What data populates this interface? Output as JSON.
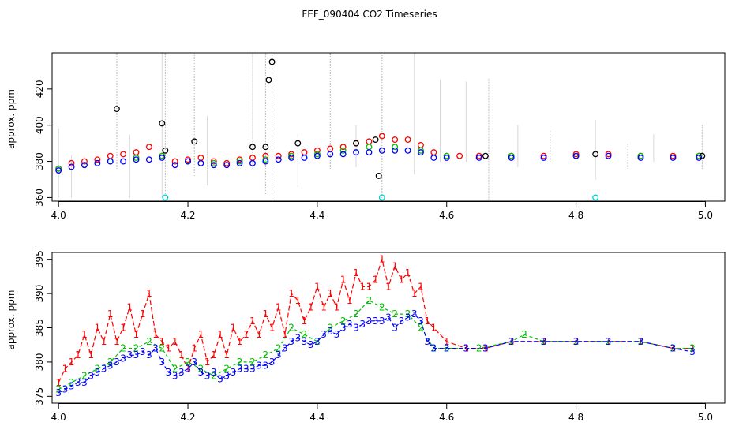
{
  "figure": {
    "title": "FEF_090404  CO2 Timeseries"
  },
  "colors": {
    "red": "#ff0000",
    "green": "#00c000",
    "blue": "#0000ff",
    "black": "#000000",
    "cyan": "#00d0d0",
    "gray": "#b0b0b0"
  },
  "chart_data": [
    {
      "type": "scatter",
      "ylabel": "approx. ppm",
      "xlim": [
        3.99,
        5.03
      ],
      "ylim": [
        358,
        440
      ],
      "xticks": [
        "4.0",
        "4.2",
        "4.4",
        "4.6",
        "4.8",
        "5.0"
      ],
      "yticks": [
        "360",
        "380",
        "400",
        "420"
      ],
      "xtick_values": [
        4.0,
        4.2,
        4.4,
        4.6,
        4.8,
        5.0
      ],
      "ytick_values": [
        360,
        380,
        400,
        420
      ],
      "series": [
        {
          "key": "red",
          "color": "#ff0000",
          "marker": "circle",
          "x": [
            4.0,
            4.02,
            4.04,
            4.06,
            4.08,
            4.1,
            4.12,
            4.14,
            4.16,
            4.18,
            4.2,
            4.22,
            4.24,
            4.26,
            4.28,
            4.3,
            4.32,
            4.34,
            4.36,
            4.38,
            4.4,
            4.42,
            4.44,
            4.46,
            4.48,
            4.5,
            4.52,
            4.54,
            4.56,
            4.58,
            4.6,
            4.62,
            4.65,
            4.7,
            4.75,
            4.8,
            4.85,
            4.9,
            4.95,
            4.99
          ],
          "y": [
            376,
            379,
            380,
            381,
            383,
            384,
            385,
            388,
            383,
            380,
            381,
            382,
            380,
            379,
            381,
            382,
            383,
            383,
            384,
            385,
            386,
            387,
            388,
            390,
            391,
            394,
            392,
            392,
            389,
            385,
            383,
            383,
            383,
            383,
            383,
            384,
            384,
            383,
            383,
            383
          ]
        },
        {
          "key": "green",
          "color": "#00c000",
          "marker": "circle",
          "x": [
            4.0,
            4.04,
            4.08,
            4.12,
            4.16,
            4.2,
            4.24,
            4.28,
            4.32,
            4.36,
            4.4,
            4.44,
            4.48,
            4.52,
            4.56,
            4.6,
            4.7,
            4.8,
            4.9,
            4.99
          ],
          "y": [
            376,
            378,
            380,
            382,
            383,
            380,
            379,
            380,
            381,
            383,
            384,
            386,
            388,
            388,
            386,
            383,
            383,
            383,
            383,
            383
          ]
        },
        {
          "key": "blue",
          "color": "#0000ff",
          "marker": "circle",
          "x": [
            4.0,
            4.02,
            4.04,
            4.06,
            4.08,
            4.1,
            4.12,
            4.14,
            4.16,
            4.18,
            4.2,
            4.22,
            4.24,
            4.26,
            4.28,
            4.3,
            4.32,
            4.34,
            4.36,
            4.38,
            4.4,
            4.42,
            4.44,
            4.46,
            4.48,
            4.5,
            4.52,
            4.54,
            4.56,
            4.58,
            4.6,
            4.65,
            4.7,
            4.75,
            4.8,
            4.85,
            4.9,
            4.95,
            4.99
          ],
          "y": [
            375,
            377,
            378,
            379,
            380,
            380,
            381,
            381,
            382,
            378,
            380,
            379,
            378,
            378,
            379,
            379,
            380,
            381,
            382,
            382,
            383,
            384,
            384,
            385,
            385,
            386,
            386,
            386,
            385,
            382,
            382,
            382,
            382,
            382,
            383,
            383,
            382,
            382,
            382
          ]
        },
        {
          "key": "black",
          "color": "#000000",
          "marker": "circle",
          "x": [
            4.09,
            4.16,
            4.165,
            4.21,
            4.3,
            4.32,
            4.325,
            4.33,
            4.37,
            4.46,
            4.49,
            4.495,
            4.66,
            4.83,
            4.995
          ],
          "y": [
            409,
            401,
            386,
            391,
            388,
            388,
            425,
            435,
            390,
            390,
            392,
            372,
            383,
            384,
            383
          ]
        },
        {
          "key": "cyan",
          "color": "#00d0d0",
          "marker": "circle",
          "x": [
            4.165,
            4.5,
            4.83
          ],
          "y": [
            360,
            360,
            360
          ]
        }
      ],
      "spikes": {
        "x": [
          4.0,
          4.02,
          4.09,
          4.11,
          4.16,
          4.165,
          4.21,
          4.23,
          4.3,
          4.32,
          4.33,
          4.37,
          4.42,
          4.46,
          4.5,
          4.55,
          4.59,
          4.63,
          4.665,
          4.71,
          4.76,
          4.83,
          4.88,
          4.92,
          4.995
        ],
        "y_low": [
          360,
          360,
          375,
          360,
          360,
          362,
          372,
          367,
          376,
          362,
          358,
          366,
          375,
          377,
          358,
          373,
          380,
          380,
          359,
          377,
          379,
          370,
          376,
          380,
          376
        ],
        "y_high": [
          398,
          383,
          440,
          395,
          440,
          440,
          440,
          405,
          440,
          440,
          440,
          395,
          440,
          400,
          440,
          440,
          425,
          424,
          426,
          400,
          397,
          403,
          390,
          395,
          400
        ]
      }
    },
    {
      "type": "line",
      "ylabel": "approx. ppm",
      "xlim": [
        3.99,
        5.03
      ],
      "ylim": [
        374,
        396
      ],
      "xticks": [
        "4.0",
        "4.2",
        "4.4",
        "4.6",
        "4.8",
        "5.0"
      ],
      "yticks": [
        "375",
        "380",
        "385",
        "390",
        "395"
      ],
      "xtick_values": [
        4.0,
        4.2,
        4.4,
        4.6,
        4.8,
        5.0
      ],
      "ytick_values": [
        375,
        380,
        385,
        390,
        395
      ],
      "series": [
        {
          "key": "red",
          "label": "1",
          "color": "#ff0000",
          "x": [
            4.0,
            4.01,
            4.02,
            4.03,
            4.04,
            4.05,
            4.06,
            4.07,
            4.08,
            4.09,
            4.1,
            4.11,
            4.12,
            4.13,
            4.14,
            4.15,
            4.16,
            4.17,
            4.18,
            4.19,
            4.2,
            4.21,
            4.22,
            4.23,
            4.24,
            4.25,
            4.26,
            4.27,
            4.28,
            4.29,
            4.3,
            4.31,
            4.32,
            4.33,
            4.34,
            4.35,
            4.36,
            4.37,
            4.38,
            4.39,
            4.4,
            4.41,
            4.42,
            4.43,
            4.44,
            4.45,
            4.46,
            4.47,
            4.48,
            4.49,
            4.5,
            4.51,
            4.52,
            4.53,
            4.54,
            4.55,
            4.56,
            4.57,
            4.58,
            4.6,
            4.63,
            4.66,
            4.7,
            4.75,
            4.8,
            4.85,
            4.9,
            4.95,
            4.98
          ],
          "y": [
            377,
            379,
            380,
            381,
            384,
            381,
            385,
            383,
            387,
            383,
            385,
            388,
            384,
            387,
            390,
            384,
            383,
            382,
            383,
            381,
            379,
            382,
            384,
            380,
            381,
            384,
            381,
            385,
            383,
            384,
            386,
            384,
            387,
            385,
            388,
            384,
            390,
            389,
            386,
            388,
            391,
            388,
            390,
            388,
            392,
            389,
            393,
            391,
            391,
            392,
            395,
            391,
            394,
            392,
            393,
            390,
            391,
            386,
            385,
            383,
            382,
            382,
            383,
            383,
            383,
            383,
            383,
            382,
            382
          ]
        },
        {
          "key": "green",
          "label": "2",
          "color": "#00c000",
          "x": [
            4.0,
            4.02,
            4.04,
            4.06,
            4.08,
            4.1,
            4.12,
            4.14,
            4.16,
            4.18,
            4.2,
            4.22,
            4.24,
            4.26,
            4.28,
            4.3,
            4.32,
            4.34,
            4.36,
            4.38,
            4.4,
            4.42,
            4.44,
            4.46,
            4.48,
            4.5,
            4.52,
            4.54,
            4.56,
            4.58,
            4.6,
            4.65,
            4.7,
            4.72,
            4.75,
            4.8,
            4.85,
            4.9,
            4.95,
            4.98
          ],
          "y": [
            376,
            377,
            378,
            379,
            380,
            382,
            382,
            383,
            382,
            379,
            380,
            379,
            378,
            379,
            380,
            380,
            381,
            382,
            385,
            384,
            383,
            385,
            386,
            387,
            389,
            388,
            387,
            387,
            385,
            382,
            382,
            382,
            383,
            384,
            383,
            383,
            383,
            383,
            382,
            382
          ]
        },
        {
          "key": "blue",
          "label": "3",
          "color": "#0000ff",
          "x": [
            4.0,
            4.01,
            4.02,
            4.03,
            4.04,
            4.05,
            4.06,
            4.07,
            4.08,
            4.09,
            4.1,
            4.11,
            4.12,
            4.13,
            4.14,
            4.15,
            4.16,
            4.17,
            4.18,
            4.19,
            4.2,
            4.21,
            4.22,
            4.23,
            4.24,
            4.25,
            4.26,
            4.27,
            4.28,
            4.29,
            4.3,
            4.31,
            4.32,
            4.33,
            4.34,
            4.35,
            4.36,
            4.37,
            4.38,
            4.39,
            4.4,
            4.41,
            4.42,
            4.43,
            4.44,
            4.45,
            4.46,
            4.47,
            4.48,
            4.49,
            4.5,
            4.51,
            4.52,
            4.53,
            4.54,
            4.55,
            4.56,
            4.57,
            4.58,
            4.6,
            4.63,
            4.66,
            4.7,
            4.75,
            4.8,
            4.85,
            4.9,
            4.95,
            4.98
          ],
          "y": [
            375.5,
            376,
            376.5,
            377,
            377,
            378,
            378.5,
            379,
            379.5,
            380,
            380.5,
            381,
            381,
            381.5,
            381,
            382,
            380,
            378.5,
            378,
            378.5,
            379,
            380,
            378.5,
            378,
            378.5,
            377.5,
            378,
            378.5,
            379,
            379,
            379,
            379.5,
            379.5,
            380,
            381,
            382,
            383,
            383.5,
            383,
            382.5,
            383,
            384,
            384.5,
            384,
            385,
            385.5,
            385,
            385.5,
            386,
            386,
            386,
            386.5,
            385,
            386,
            386.5,
            387,
            386,
            383,
            382,
            382,
            382,
            382,
            383,
            383,
            383,
            383,
            383,
            382,
            381.5
          ]
        }
      ]
    }
  ]
}
